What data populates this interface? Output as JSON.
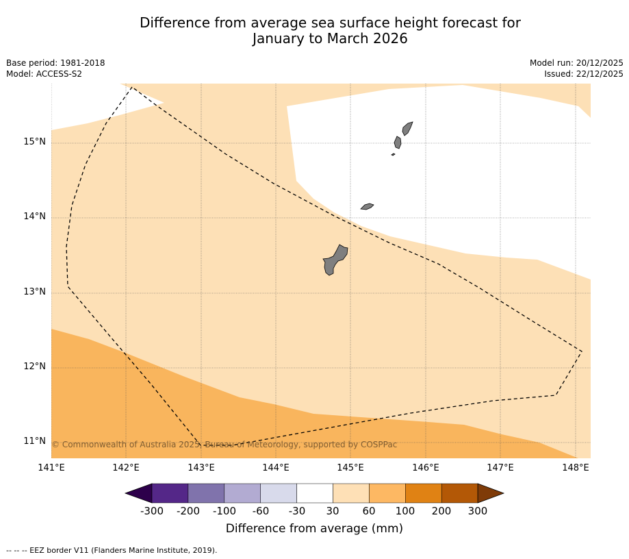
{
  "title": {
    "line1": "Difference from average sea surface height forecast for",
    "line2": "January to March 2026"
  },
  "meta": {
    "base_period": "Base period: 1981-2018",
    "model": "Model: ACCESS-S2",
    "model_run": "Model run: 20/12/2025",
    "issued": "Issued: 22/12/2025"
  },
  "map": {
    "lat_labels": [
      "15°N",
      "14°N",
      "13°N",
      "12°N",
      "11°N"
    ],
    "lon_labels": [
      "141°E",
      "142°E",
      "143°E",
      "144°E",
      "145°E",
      "146°E",
      "147°E",
      "148°E"
    ],
    "credit": "© Commonwealth of Australia 2025, Bureau of Meteorology, supported by COSPPac",
    "colors": {
      "band_30_60": "#fde0b6",
      "band_60_100": "#f9b55d",
      "land": "#7f7f7f"
    }
  },
  "colorbar": {
    "ticks": [
      "-300",
      "-200",
      "-100",
      "-60",
      "-30",
      "30",
      "60",
      "100",
      "200",
      "300"
    ],
    "colors": [
      "#2d004b",
      "#542788",
      "#8073ac",
      "#b2abd2",
      "#d8daeb",
      "#ffffff",
      "#fee0b6",
      "#fdb863",
      "#e08214",
      "#b35806",
      "#7f3b08"
    ],
    "label": "Difference from average (mm)"
  },
  "footer": {
    "legend_note": "--  --  -- EEZ border V11 (Flanders Marine Institute, 2019)."
  }
}
